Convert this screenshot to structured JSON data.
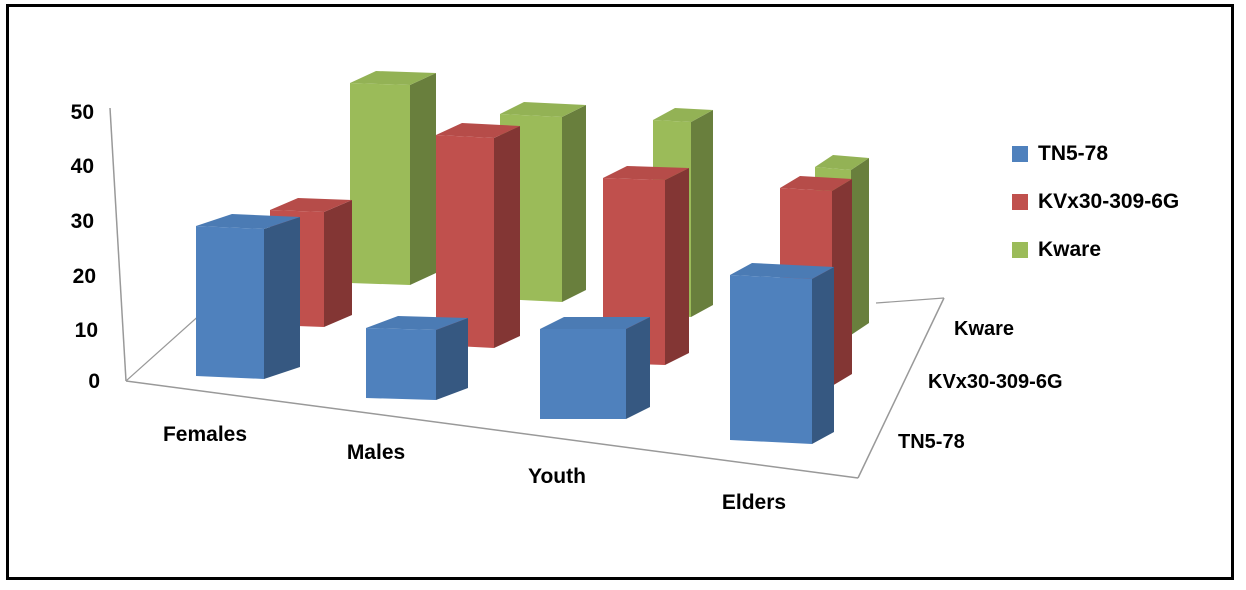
{
  "chart_data": {
    "type": "bar",
    "categories": [
      "Females",
      "Males",
      "Youth",
      "Elders"
    ],
    "series": [
      {
        "name": "TN5-78",
        "values": [
          30,
          14,
          18,
          33
        ],
        "color": "#4F81BD"
      },
      {
        "name": "KVx30-309-6G",
        "values": [
          23,
          42,
          37,
          39
        ],
        "color": "#C0504D"
      },
      {
        "name": "Kware",
        "values": [
          40,
          37,
          39,
          33
        ],
        "color": "#9BBB59"
      }
    ],
    "yticks": [
      "0",
      "10",
      "20",
      "30",
      "40",
      "50"
    ],
    "depth_labels": [
      "TN5-78",
      "KVx30-309-6G",
      "Kware"
    ],
    "ylim": [
      0,
      50
    ],
    "grid": false,
    "legend": "right"
  }
}
